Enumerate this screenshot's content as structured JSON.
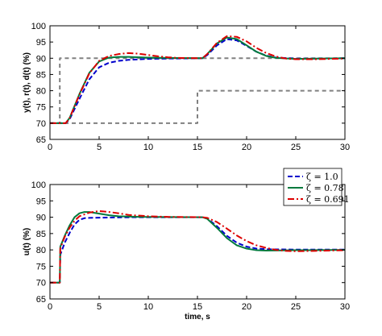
{
  "chart_data": [
    {
      "type": "line",
      "ylabel": "y(t), r(t), d(t) (%)",
      "xlabel": "",
      "xlim": [
        0,
        30
      ],
      "ylim": [
        65,
        100
      ],
      "xticks": [
        0,
        5,
        10,
        15,
        20,
        25,
        30
      ],
      "yticks": [
        65,
        70,
        75,
        80,
        85,
        90,
        95,
        100
      ],
      "grid": false,
      "series": [
        {
          "name": "",
          "role": "setpoint r(t)",
          "color": "#808080",
          "dash": "dashed",
          "points": [
            [
              0,
              70
            ],
            [
              1,
              70
            ],
            [
              1,
              90
            ],
            [
              30,
              90
            ]
          ]
        },
        {
          "name": "",
          "role": "disturbance d(t)",
          "color": "#808080",
          "dash": "dashed",
          "points": [
            [
              0,
              70
            ],
            [
              15,
              70
            ],
            [
              15,
              80
            ],
            [
              30,
              80
            ]
          ]
        },
        {
          "name": "ζ = 1.0",
          "color": "#0000cc",
          "dash": "dashed",
          "points": [
            [
              0,
              70
            ],
            [
              1.6,
              70
            ],
            [
              2,
              71.2
            ],
            [
              3,
              77.5
            ],
            [
              4,
              83.5
            ],
            [
              5,
              87.2
            ],
            [
              6,
              88.6
            ],
            [
              7,
              89.2
            ],
            [
              8,
              89.5
            ],
            [
              10,
              89.8
            ],
            [
              12,
              89.9
            ],
            [
              15.5,
              90
            ],
            [
              16,
              91
            ],
            [
              17,
              94
            ],
            [
              18,
              95.9
            ],
            [
              19,
              95.5
            ],
            [
              20,
              93.8
            ],
            [
              21,
              92
            ],
            [
              22,
              90.8
            ],
            [
              23,
              90.2
            ],
            [
              25,
              89.9
            ],
            [
              27,
              89.9
            ],
            [
              30,
              90
            ]
          ]
        },
        {
          "name": "ζ = 0.78",
          "color": "#007a3d",
          "dash": "solid",
          "points": [
            [
              0,
              70
            ],
            [
              1.6,
              70
            ],
            [
              2,
              71.6
            ],
            [
              3,
              79
            ],
            [
              4,
              85.5
            ],
            [
              5,
              89
            ],
            [
              6,
              90.2
            ],
            [
              7,
              90.4
            ],
            [
              8,
              90.4
            ],
            [
              10,
              90.2
            ],
            [
              12,
              90.1
            ],
            [
              15.5,
              90
            ],
            [
              16,
              91.3
            ],
            [
              17,
              94.6
            ],
            [
              18,
              96.4
            ],
            [
              19,
              95.9
            ],
            [
              20,
              94
            ],
            [
              21,
              92
            ],
            [
              22,
              90.7
            ],
            [
              23,
              90.1
            ],
            [
              25,
              89.8
            ],
            [
              27,
              89.9
            ],
            [
              30,
              90
            ]
          ]
        },
        {
          "name": "ζ = 0.691",
          "color": "#dd0000",
          "dash": "dashdot",
          "points": [
            [
              0,
              70
            ],
            [
              1.6,
              70
            ],
            [
              2,
              71.6
            ],
            [
              3,
              78.8
            ],
            [
              4,
              85.3
            ],
            [
              5,
              89.2
            ],
            [
              6,
              90.7
            ],
            [
              7,
              91.3
            ],
            [
              8,
              91.6
            ],
            [
              9,
              91.4
            ],
            [
              10,
              91
            ],
            [
              11,
              90.6
            ],
            [
              12,
              90.3
            ],
            [
              13,
              90.1
            ],
            [
              15.5,
              90
            ],
            [
              16,
              91.3
            ],
            [
              17,
              94.8
            ],
            [
              18,
              96.8
            ],
            [
              19,
              96.6
            ],
            [
              20,
              95.2
            ],
            [
              21,
              93.2
            ],
            [
              22,
              91.6
            ],
            [
              23,
              90.5
            ],
            [
              24,
              89.9
            ],
            [
              25,
              89.7
            ],
            [
              27,
              89.7
            ],
            [
              30,
              89.9
            ]
          ]
        }
      ]
    },
    {
      "type": "line",
      "ylabel": "u(t) (%)",
      "xlabel": "time, s",
      "xlim": [
        0,
        30
      ],
      "ylim": [
        65,
        100
      ],
      "xticks": [
        0,
        5,
        10,
        15,
        20,
        25,
        30
      ],
      "yticks": [
        65,
        70,
        75,
        80,
        85,
        90,
        95,
        100
      ],
      "grid": false,
      "legend": {
        "placement": "top-right",
        "entries": [
          "ζ = 1.0",
          "ζ = 0.78",
          "ζ = 0.691"
        ]
      },
      "series": [
        {
          "name": "ζ = 1.0",
          "color": "#0000cc",
          "dash": "dashed",
          "points": [
            [
              0,
              70
            ],
            [
              1,
              70
            ],
            [
              1.05,
              78.5
            ],
            [
              1.5,
              82.2
            ],
            [
              2,
              85.2
            ],
            [
              2.5,
              87.8
            ],
            [
              3,
              89.2
            ],
            [
              3.5,
              89.7
            ],
            [
              4,
              89.8
            ],
            [
              6,
              89.9
            ],
            [
              9,
              90
            ],
            [
              15.5,
              90
            ],
            [
              16,
              89.6
            ],
            [
              17,
              87.2
            ],
            [
              18,
              84.3
            ],
            [
              19,
              82.2
            ],
            [
              20,
              81
            ],
            [
              21,
              80.4
            ],
            [
              22,
              80.2
            ],
            [
              25,
              80.1
            ],
            [
              30,
              80.1
            ]
          ]
        },
        {
          "name": "ζ = 0.78",
          "color": "#007a3d",
          "dash": "solid",
          "points": [
            [
              0,
              70
            ],
            [
              1,
              70
            ],
            [
              1.05,
              81
            ],
            [
              1.5,
              84.3
            ],
            [
              2,
              87.5
            ],
            [
              2.5,
              90
            ],
            [
              3,
              91.2
            ],
            [
              3.5,
              91.6
            ],
            [
              4,
              91.6
            ],
            [
              5,
              91.1
            ],
            [
              6,
              90.6
            ],
            [
              7,
              90.3
            ],
            [
              9,
              90.1
            ],
            [
              15.5,
              90
            ],
            [
              16,
              89.5
            ],
            [
              17,
              86.7
            ],
            [
              18,
              83.6
            ],
            [
              19,
              81.4
            ],
            [
              20,
              80.4
            ],
            [
              21,
              79.9
            ],
            [
              22,
              79.8
            ],
            [
              25,
              79.9
            ],
            [
              30,
              80
            ]
          ]
        },
        {
          "name": "ζ = 0.691",
          "color": "#dd0000",
          "dash": "dashdot",
          "points": [
            [
              0,
              70
            ],
            [
              1,
              70
            ],
            [
              1.05,
              80.5
            ],
            [
              1.5,
              84
            ],
            [
              2,
              86.8
            ],
            [
              2.5,
              88.9
            ],
            [
              3,
              90.3
            ],
            [
              4,
              91.4
            ],
            [
              5,
              91.9
            ],
            [
              6,
              91.6
            ],
            [
              7,
              91.2
            ],
            [
              8,
              90.7
            ],
            [
              10,
              90.3
            ],
            [
              12,
              90.1
            ],
            [
              15.5,
              90
            ],
            [
              16,
              89.8
            ],
            [
              17,
              88.5
            ],
            [
              18,
              86.5
            ],
            [
              19,
              84.4
            ],
            [
              20,
              82.7
            ],
            [
              21,
              81.4
            ],
            [
              22,
              80.6
            ],
            [
              23,
              80
            ],
            [
              24,
              79.7
            ],
            [
              25,
              79.6
            ],
            [
              27,
              79.7
            ],
            [
              30,
              79.9
            ]
          ]
        }
      ]
    }
  ]
}
